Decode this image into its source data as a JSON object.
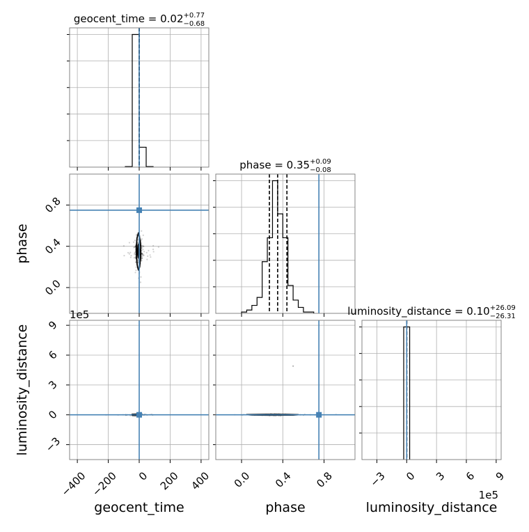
{
  "chart_data": {
    "type": "corner",
    "true_value_color": "#4682b4",
    "grid": true,
    "parameters": [
      "geocent_time",
      "phase",
      "luminosity_distance"
    ],
    "panels": [
      {
        "kind": "histogram",
        "param": "geocent_time",
        "title": {
          "main": "geocent_time = 0.02",
          "sup": "+0.77",
          "sub": "−0.68"
        },
        "xlim": [
          -450,
          450
        ],
        "bins": [
          {
            "x0": -90,
            "x1": -45,
            "rel": 0.004
          },
          {
            "x0": -45,
            "x1": 0,
            "rel": 1.0
          },
          {
            "x0": 0,
            "x1": 45,
            "rel": 0.15
          },
          {
            "x0": 45,
            "x1": 90,
            "rel": 0.004
          }
        ],
        "quantile_lines": [
          -0.66,
          0.02,
          0.79
        ],
        "true_value": 0.0
      },
      {
        "kind": "contour",
        "x_param": "geocent_time",
        "y_param": "phase",
        "xlim": [
          -450,
          450
        ],
        "ylim": [
          -0.25,
          1.1
        ],
        "center": [
          -5,
          0.35
        ],
        "spread": [
          12,
          0.05
        ],
        "outer_contour": [
          [
            -5,
            0.53
          ],
          [
            3,
            0.48
          ],
          [
            10,
            0.4
          ],
          [
            9,
            0.3
          ],
          [
            3,
            0.2
          ],
          [
            -5,
            0.17
          ],
          [
            -13,
            0.22
          ],
          [
            -18,
            0.3
          ],
          [
            -18,
            0.4
          ],
          [
            -14,
            0.48
          ]
        ],
        "inner_blob": [
          [
            -5,
            0.42
          ],
          [
            1,
            0.38
          ],
          [
            2,
            0.33
          ],
          [
            -2,
            0.29
          ],
          [
            -8,
            0.29
          ],
          [
            -12,
            0.33
          ],
          [
            -11,
            0.38
          ],
          [
            -8,
            0.42
          ]
        ],
        "true_value": [
          0.0,
          0.75
        ],
        "yticks": [
          0.0,
          0.4,
          0.8
        ],
        "ytick_labels": [
          "0.0",
          "0.4",
          "0.8"
        ],
        "ylabel": "phase"
      },
      {
        "kind": "histogram",
        "param": "phase",
        "title": {
          "main": "phase = 0.35",
          "sup": "+0.09",
          "sub": "−0.08"
        },
        "xlim": [
          -0.25,
          1.1
        ],
        "bins": [
          {
            "x0": 0.0,
            "x1": 0.05,
            "rel": 0.01
          },
          {
            "x0": 0.05,
            "x1": 0.1,
            "rel": 0.025
          },
          {
            "x0": 0.1,
            "x1": 0.15,
            "rel": 0.06
          },
          {
            "x0": 0.15,
            "x1": 0.2,
            "rel": 0.12
          },
          {
            "x0": 0.2,
            "x1": 0.25,
            "rel": 0.39
          },
          {
            "x0": 0.25,
            "x1": 0.3,
            "rel": 0.57
          },
          {
            "x0": 0.3,
            "x1": 0.35,
            "rel": 1.0
          },
          {
            "x0": 0.35,
            "x1": 0.4,
            "rel": 0.75
          },
          {
            "x0": 0.4,
            "x1": 0.45,
            "rel": 0.57
          },
          {
            "x0": 0.45,
            "x1": 0.5,
            "rel": 0.21
          },
          {
            "x0": 0.5,
            "x1": 0.55,
            "rel": 0.1
          },
          {
            "x0": 0.55,
            "x1": 0.6,
            "rel": 0.045
          },
          {
            "x0": 0.6,
            "x1": 0.65,
            "rel": 0.01
          },
          {
            "x0": 0.65,
            "x1": 0.7,
            "rel": 0.01
          }
        ],
        "quantile_lines": [
          0.27,
          0.35,
          0.44
        ],
        "true_value": 0.75
      },
      {
        "kind": "contour",
        "x_param": "geocent_time",
        "y_param": "luminosity_distance",
        "xlim": [
          -450,
          450
        ],
        "ylim": [
          -450000,
          950000
        ],
        "center": [
          -15,
          0
        ],
        "spread": [
          15,
          2000
        ],
        "outer_contour": [
          [
            -45,
            4500
          ],
          [
            10,
            4500
          ],
          [
            15,
            0
          ],
          [
            10,
            -4500
          ],
          [
            -45,
            -4500
          ],
          [
            -48,
            0
          ]
        ],
        "inner_blob": [
          [
            -45,
            8000
          ],
          [
            -20,
            8000
          ],
          [
            -20,
            -8000
          ],
          [
            -45,
            -8000
          ]
        ],
        "true_value": [
          0.0,
          0.0
        ],
        "yticks": [
          -300000,
          0,
          300000,
          600000,
          900000
        ],
        "ytick_labels": [
          "−3",
          "0",
          "3",
          "6",
          "9"
        ],
        "ylabel": "luminosity_distance",
        "y_offset_text": "1e5"
      },
      {
        "kind": "contour",
        "x_param": "phase",
        "y_param": "luminosity_distance",
        "xlim": [
          -0.25,
          1.1
        ],
        "ylim": [
          -450000,
          950000
        ],
        "center": [
          0.35,
          0
        ],
        "spread": [
          0.05,
          2000
        ],
        "outer_contour": [
          [
            0.05,
            2000
          ],
          [
            0.25,
            5000
          ],
          [
            0.45,
            4000
          ],
          [
            0.55,
            1000
          ],
          [
            0.5,
            -3000
          ],
          [
            0.3,
            -4000
          ],
          [
            0.1,
            -2000
          ]
        ],
        "inner_blob": [
          [
            0.2,
            2000
          ],
          [
            0.4,
            3000
          ],
          [
            0.45,
            0
          ],
          [
            0.4,
            -3000
          ],
          [
            0.2,
            -2000
          ]
        ],
        "true_value": [
          0.75,
          0.0
        ],
        "outlier": [
          0.5,
          490000
        ]
      },
      {
        "kind": "histogram",
        "param": "luminosity_distance",
        "title": {
          "main": "luminosity_distance = 0.10",
          "sup": "+26.09",
          "sub": "−26.31"
        },
        "xlim": [
          -450000,
          950000
        ],
        "bins": [
          {
            "x0": -30000,
            "x1": 0,
            "rel": 1.0
          },
          {
            "x0": 0,
            "x1": 30000,
            "rel": 1.0
          }
        ],
        "quantile_lines": [
          -26.21,
          0.1,
          26.19
        ],
        "true_value": 0.0
      }
    ],
    "x_axes": [
      {
        "param": "geocent_time",
        "ticks": [
          -400,
          -200,
          0,
          200,
          400
        ],
        "tick_labels": [
          "−400",
          "−200",
          "0",
          "200",
          "400"
        ],
        "label": "geocent_time"
      },
      {
        "param": "phase",
        "ticks": [
          0.0,
          0.4,
          0.8
        ],
        "tick_labels": [
          "0.0",
          "0.4",
          "0.8"
        ],
        "label": "phase"
      },
      {
        "param": "luminosity_distance",
        "ticks": [
          -300000,
          0,
          300000,
          600000,
          900000
        ],
        "tick_labels": [
          "−3",
          "0",
          "3",
          "6",
          "9"
        ],
        "label": "luminosity_distance",
        "offset_text": "1e5"
      }
    ]
  }
}
